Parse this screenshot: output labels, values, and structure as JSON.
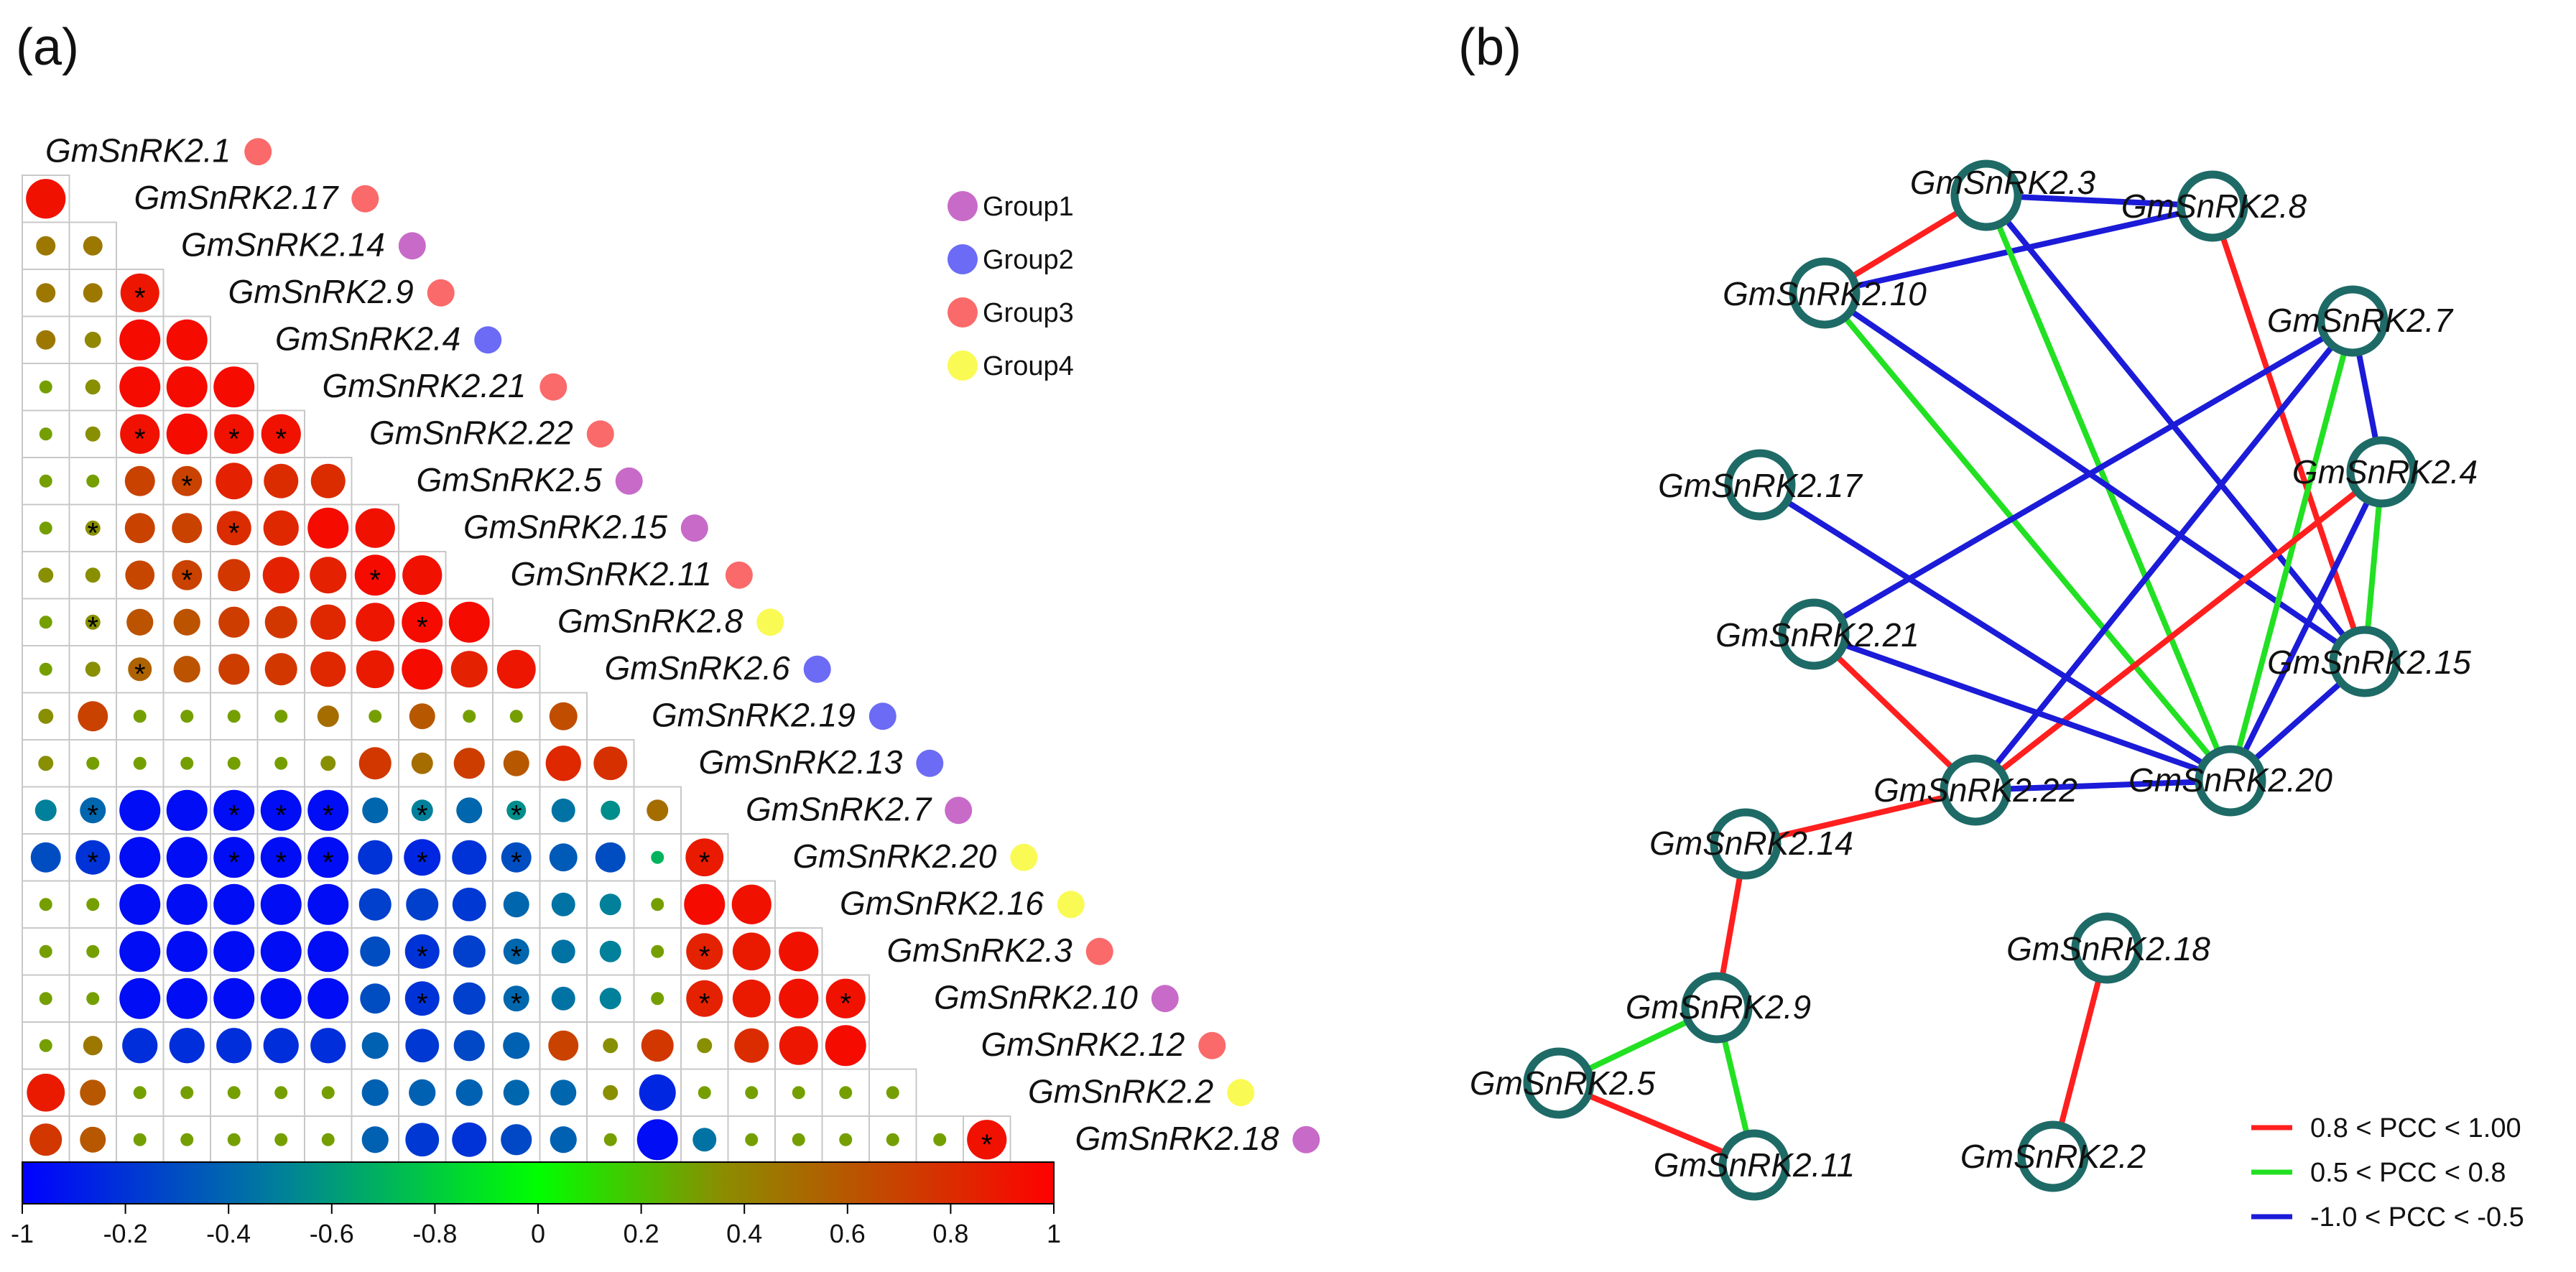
{
  "panels": {
    "a": "(a)",
    "b": "(b)"
  },
  "colors": {
    "group1": "#c86ac8",
    "group2": "#6b6bf5",
    "group3": "#fa6a6a",
    "group4": "#fafa55",
    "positive": "#ff1f1f",
    "moderate": "#22e022",
    "negative": "#1b1bd8",
    "node_stroke": "#1e6a66"
  },
  "groups": [
    {
      "label": "Group1",
      "color": "#c86ac8"
    },
    {
      "label": "Group2",
      "color": "#6b6bf5"
    },
    {
      "label": "Group3",
      "color": "#fa6a6a"
    },
    {
      "label": "Group4",
      "color": "#fafa55"
    }
  ],
  "chart_data": {
    "type": "heatmap",
    "shape": "lower-triangle circle correlation matrix",
    "genes": [
      "GmSnRK2.1",
      "GmSnRK2.17",
      "GmSnRK2.14",
      "GmSnRK2.9",
      "GmSnRK2.4",
      "GmSnRK2.21",
      "GmSnRK2.22",
      "GmSnRK2.5",
      "GmSnRK2.15",
      "GmSnRK2.11",
      "GmSnRK2.8",
      "GmSnRK2.6",
      "GmSnRK2.19",
      "GmSnRK2.13",
      "GmSnRK2.7",
      "GmSnRK2.20",
      "GmSnRK2.16",
      "GmSnRK2.3",
      "GmSnRK2.10",
      "GmSnRK2.12",
      "GmSnRK2.2",
      "GmSnRK2.18"
    ],
    "gene_groups": [
      3,
      3,
      1,
      3,
      2,
      3,
      3,
      1,
      1,
      3,
      4,
      2,
      2,
      2,
      1,
      4,
      4,
      3,
      1,
      3,
      4,
      1
    ],
    "matrix": [
      [
        0.92
      ],
      [
        0.45,
        0.45
      ],
      [
        0.45,
        0.45,
        0.9
      ],
      [
        0.45,
        0.38,
        0.95,
        0.95
      ],
      [
        0.3,
        0.35,
        0.95,
        0.95,
        0.95
      ],
      [
        0.3,
        0.35,
        0.92,
        0.95,
        0.92,
        0.92
      ],
      [
        0.3,
        0.3,
        0.7,
        0.7,
        0.85,
        0.8,
        0.8
      ],
      [
        0.3,
        0.35,
        0.7,
        0.7,
        0.8,
        0.82,
        0.95,
        0.92
      ],
      [
        0.35,
        0.35,
        0.68,
        0.7,
        0.75,
        0.85,
        0.85,
        0.95,
        0.92
      ],
      [
        0.3,
        0.35,
        0.62,
        0.62,
        0.72,
        0.75,
        0.82,
        0.9,
        0.95,
        0.95
      ],
      [
        0.3,
        0.35,
        0.55,
        0.62,
        0.72,
        0.75,
        0.82,
        0.88,
        0.95,
        0.85,
        0.9
      ],
      [
        0.35,
        0.7,
        0.3,
        0.3,
        0.3,
        0.3,
        0.5,
        0.3,
        0.6,
        0.3,
        0.3,
        0.65
      ],
      [
        0.35,
        0.3,
        0.3,
        0.3,
        0.3,
        0.3,
        0.35,
        0.75,
        0.5,
        0.72,
        0.6,
        0.82,
        0.78
      ],
      [
        -0.5,
        -0.6,
        -0.95,
        -0.95,
        -0.95,
        -0.95,
        -0.95,
        -0.6,
        -0.5,
        -0.6,
        -0.45,
        -0.55,
        -0.45,
        0.5
      ],
      [
        -0.7,
        -0.8,
        -0.95,
        -0.95,
        -0.95,
        -0.95,
        -0.95,
        -0.8,
        -0.85,
        -0.8,
        -0.7,
        -0.65,
        -0.7,
        -0.3,
        0.88
      ],
      [
        0.3,
        0.3,
        -0.95,
        -0.95,
        -0.95,
        -0.95,
        -0.95,
        -0.75,
        -0.75,
        -0.78,
        -0.6,
        -0.55,
        -0.5,
        0.3,
        0.95,
        0.92
      ],
      [
        0.3,
        0.3,
        -0.95,
        -0.95,
        -0.95,
        -0.95,
        -0.95,
        -0.7,
        -0.8,
        -0.75,
        -0.6,
        -0.55,
        -0.5,
        0.3,
        0.85,
        0.88,
        0.92
      ],
      [
        0.3,
        0.3,
        -0.95,
        -0.95,
        -0.95,
        -0.95,
        -0.95,
        -0.7,
        -0.8,
        -0.75,
        -0.6,
        -0.55,
        -0.5,
        0.3,
        0.85,
        0.88,
        0.92,
        0.92
      ],
      [
        0.3,
        0.45,
        -0.82,
        -0.82,
        -0.82,
        -0.82,
        -0.82,
        -0.62,
        -0.78,
        -0.72,
        -0.62,
        0.7,
        0.35,
        0.75,
        0.35,
        0.8,
        0.9,
        0.95
      ],
      [
        0.88,
        0.6,
        0.3,
        0.3,
        0.3,
        0.3,
        0.3,
        -0.62,
        -0.62,
        -0.62,
        -0.6,
        -0.6,
        0.35,
        -0.85,
        0.3,
        0.3,
        0.3,
        0.3,
        0.3
      ],
      [
        0.75,
        0.6,
        0.3,
        0.3,
        0.3,
        0.3,
        0.3,
        -0.62,
        -0.78,
        -0.8,
        -0.72,
        -0.62,
        0.3,
        -0.95,
        -0.55,
        0.3,
        0.3,
        0.3,
        0.3,
        0.3,
        0.92
      ]
    ],
    "significant": [
      [
        3,
        2
      ],
      [
        6,
        2
      ],
      [
        6,
        4
      ],
      [
        6,
        5
      ],
      [
        7,
        3
      ],
      [
        8,
        1
      ],
      [
        8,
        4
      ],
      [
        9,
        3
      ],
      [
        9,
        7
      ],
      [
        10,
        1
      ],
      [
        10,
        8
      ],
      [
        11,
        2
      ],
      [
        14,
        1
      ],
      [
        14,
        4
      ],
      [
        14,
        5
      ],
      [
        14,
        6
      ],
      [
        14,
        8
      ],
      [
        14,
        10
      ],
      [
        15,
        1
      ],
      [
        15,
        4
      ],
      [
        15,
        5
      ],
      [
        15,
        6
      ],
      [
        15,
        8
      ],
      [
        15,
        10
      ],
      [
        15,
        14
      ],
      [
        17,
        8
      ],
      [
        17,
        10
      ],
      [
        17,
        14
      ],
      [
        18,
        8
      ],
      [
        18,
        10
      ],
      [
        18,
        14
      ],
      [
        18,
        17
      ],
      [
        21,
        20
      ]
    ],
    "colorbar": {
      "ticks": [
        "-1",
        "-0.2",
        "-0.4",
        "-0.6",
        "-0.8",
        "0",
        "0.2",
        "0.4",
        "0.6",
        "0.8",
        "1"
      ],
      "tick_positions": [
        -1,
        -0.8,
        -0.6,
        -0.4,
        -0.2,
        0,
        0.2,
        0.4,
        0.6,
        0.8,
        1
      ],
      "range": [
        -1,
        1
      ]
    }
  },
  "network": {
    "nodes": [
      {
        "id": "GmSnRK2.3"
      },
      {
        "id": "GmSnRK2.8"
      },
      {
        "id": "GmSnRK2.10"
      },
      {
        "id": "GmSnRK2.7"
      },
      {
        "id": "GmSnRK2.4"
      },
      {
        "id": "GmSnRK2.17"
      },
      {
        "id": "GmSnRK2.21"
      },
      {
        "id": "GmSnRK2.15"
      },
      {
        "id": "GmSnRK2.22"
      },
      {
        "id": "GmSnRK2.20"
      },
      {
        "id": "GmSnRK2.14"
      },
      {
        "id": "GmSnRK2.18"
      },
      {
        "id": "GmSnRK2.9"
      },
      {
        "id": "GmSnRK2.5"
      },
      {
        "id": "GmSnRK2.11"
      },
      {
        "id": "GmSnRK2.2"
      }
    ],
    "edges": [
      {
        "source": "GmSnRK2.3",
        "target": "GmSnRK2.10",
        "type": "positive"
      },
      {
        "source": "GmSnRK2.3",
        "target": "GmSnRK2.8",
        "type": "negative"
      },
      {
        "source": "GmSnRK2.10",
        "target": "GmSnRK2.8",
        "type": "negative"
      },
      {
        "source": "GmSnRK2.3",
        "target": "GmSnRK2.20",
        "type": "moderate"
      },
      {
        "source": "GmSnRK2.3",
        "target": "GmSnRK2.15",
        "type": "negative"
      },
      {
        "source": "GmSnRK2.10",
        "target": "GmSnRK2.20",
        "type": "moderate"
      },
      {
        "source": "GmSnRK2.10",
        "target": "GmSnRK2.15",
        "type": "negative"
      },
      {
        "source": "GmSnRK2.8",
        "target": "GmSnRK2.15",
        "type": "positive"
      },
      {
        "source": "GmSnRK2.7",
        "target": "GmSnRK2.21",
        "type": "negative"
      },
      {
        "source": "GmSnRK2.7",
        "target": "GmSnRK2.22",
        "type": "negative"
      },
      {
        "source": "GmSnRK2.7",
        "target": "GmSnRK2.20",
        "type": "moderate"
      },
      {
        "source": "GmSnRK2.7",
        "target": "GmSnRK2.4",
        "type": "negative"
      },
      {
        "source": "GmSnRK2.4",
        "target": "GmSnRK2.22",
        "type": "positive"
      },
      {
        "source": "GmSnRK2.4",
        "target": "GmSnRK2.20",
        "type": "negative"
      },
      {
        "source": "GmSnRK2.4",
        "target": "GmSnRK2.15",
        "type": "moderate"
      },
      {
        "source": "GmSnRK2.17",
        "target": "GmSnRK2.20",
        "type": "negative"
      },
      {
        "source": "GmSnRK2.21",
        "target": "GmSnRK2.22",
        "type": "positive"
      },
      {
        "source": "GmSnRK2.21",
        "target": "GmSnRK2.20",
        "type": "negative"
      },
      {
        "source": "GmSnRK2.15",
        "target": "GmSnRK2.20",
        "type": "negative"
      },
      {
        "source": "GmSnRK2.22",
        "target": "GmSnRK2.20",
        "type": "negative"
      },
      {
        "source": "GmSnRK2.22",
        "target": "GmSnRK2.14",
        "type": "positive"
      },
      {
        "source": "GmSnRK2.14",
        "target": "GmSnRK2.9",
        "type": "positive"
      },
      {
        "source": "GmSnRK2.9",
        "target": "GmSnRK2.5",
        "type": "moderate"
      },
      {
        "source": "GmSnRK2.9",
        "target": "GmSnRK2.11",
        "type": "moderate"
      },
      {
        "source": "GmSnRK2.5",
        "target": "GmSnRK2.11",
        "type": "positive"
      },
      {
        "source": "GmSnRK2.18",
        "target": "GmSnRK2.2",
        "type": "positive"
      }
    ],
    "legend": [
      {
        "label": "0.8 < PCC < 1.00",
        "type": "positive"
      },
      {
        "label": "0.5 < PCC < 0.8",
        "type": "moderate"
      },
      {
        "label": "-1.0 < PCC < -0.5",
        "type": "negative"
      }
    ]
  }
}
